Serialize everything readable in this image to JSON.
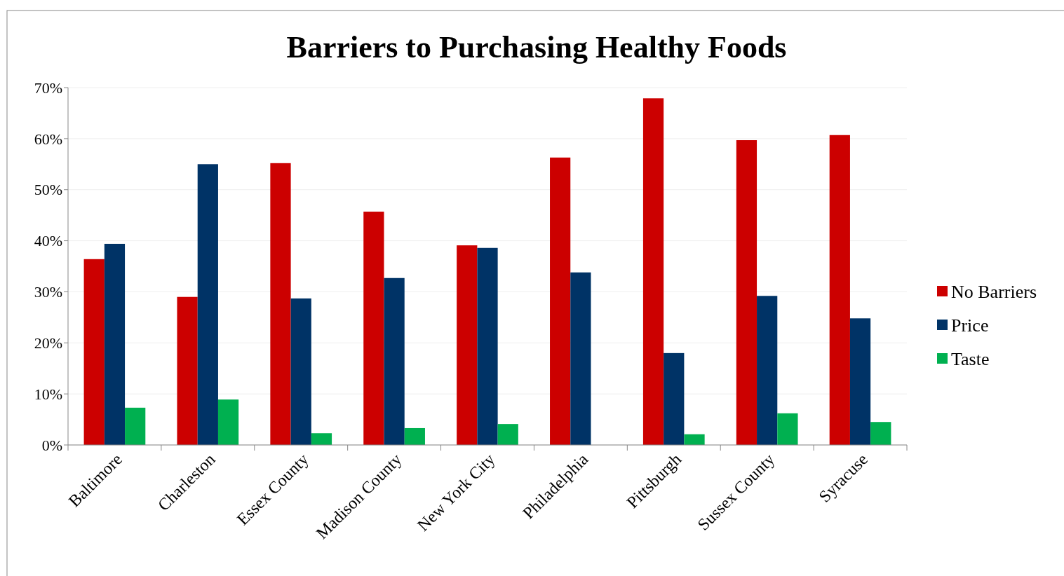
{
  "chart_data": {
    "type": "bar",
    "title": "Barriers to Purchasing Healthy Foods",
    "categories": [
      "Baltimore",
      "Charleston",
      "Essex County",
      "Madison County",
      "New York City",
      "Philadelphia",
      "Pittsburgh",
      "Sussex County",
      "Syracuse"
    ],
    "series": [
      {
        "name": "No Barriers",
        "color": "#cc0000",
        "values": [
          36.4,
          29.0,
          55.2,
          45.7,
          39.1,
          56.3,
          67.9,
          59.7,
          60.7
        ]
      },
      {
        "name": "Price",
        "color": "#003366",
        "values": [
          39.4,
          55.0,
          28.7,
          32.7,
          38.6,
          33.8,
          18.0,
          29.2,
          24.8
        ]
      },
      {
        "name": "Taste",
        "color": "#00b050",
        "values": [
          7.3,
          8.9,
          2.3,
          3.3,
          4.1,
          null,
          2.1,
          6.2,
          4.5
        ]
      }
    ],
    "ylim": [
      0,
      70
    ],
    "yticks": [
      {
        "value": 0,
        "label": "0%"
      },
      {
        "value": 10,
        "label": "10%"
      },
      {
        "value": 20,
        "label": "20%"
      },
      {
        "value": 30,
        "label": "30%"
      },
      {
        "value": 40,
        "label": "40%"
      },
      {
        "value": 50,
        "label": "50%"
      },
      {
        "value": 60,
        "label": "60%"
      },
      {
        "value": 70,
        "label": "70%"
      }
    ],
    "grid": "y",
    "legend": "right"
  }
}
